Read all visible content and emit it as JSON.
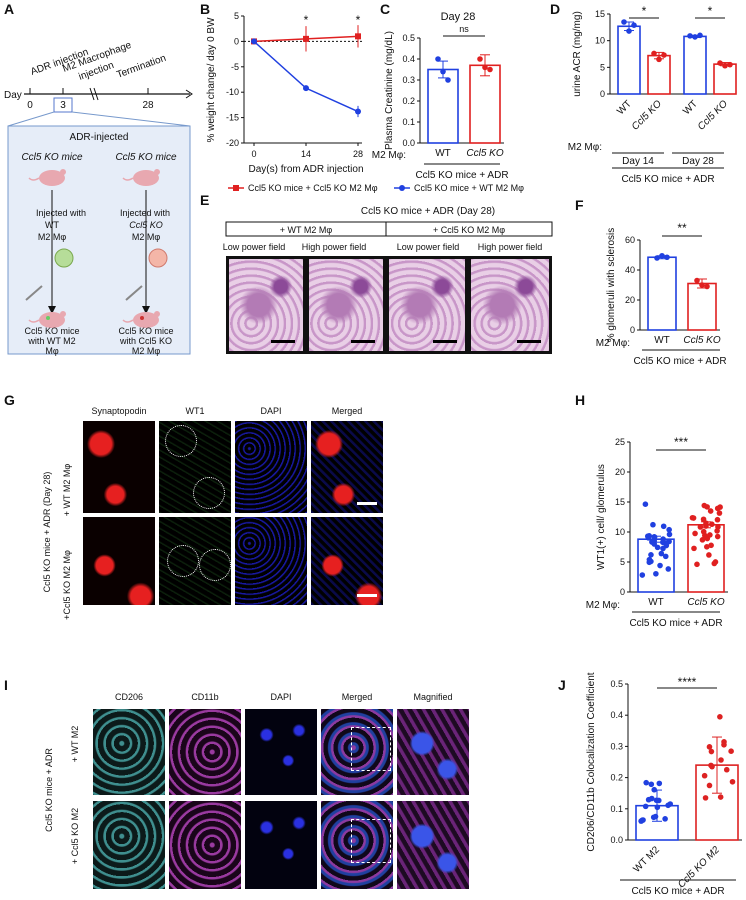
{
  "panels": {
    "A": {
      "letter": "A",
      "day_label": "Day",
      "ticks": [
        "0",
        "3",
        "28"
      ],
      "adr": "ADR injection",
      "m2": "M2 Macrophage\ninjection",
      "term": "Termination",
      "box_title": "ADR-injected",
      "mouse_left": "Ccl5 KO mice",
      "mouse_right": "Ccl5 KO mice",
      "inj_left_1": "Injected with",
      "inj_left_2": "WT",
      "inj_left_3": "M2 Mφ",
      "inj_right_1": "Injected with",
      "inj_right_2": "Ccl5 KO",
      "inj_right_3": "M2 Mφ",
      "res_left": "Ccl5 KO mice\nwith WT M2\nMφ",
      "res_right": "Ccl5 KO mice\nwith Ccl5 KO\nM2 Mφ"
    },
    "B": {
      "letter": "B",
      "star": "*"
    },
    "C": {
      "letter": "C",
      "star": "ns"
    },
    "D": {
      "letter": "D",
      "star": "*"
    },
    "E": {
      "letter": "E",
      "title": "Ccl5 KO mice + ADR (Day 28)",
      "group1": "+ WT M2 Mφ",
      "group2": "+ Ccl5 KO M2 Mφ",
      "low": "Low power field",
      "high": "High power field"
    },
    "F": {
      "letter": "F",
      "star": "**"
    },
    "G": {
      "letter": "G",
      "cols": [
        "Synaptopodin",
        "WT1",
        "DAPI",
        "Merged"
      ],
      "side": "Ccl5 KO mice + ADR (Day 28)",
      "row1": "+ WT M2 Mφ",
      "row2": "+Ccl5 KO M2 Mφ"
    },
    "H": {
      "letter": "H",
      "star": "***"
    },
    "I": {
      "letter": "I",
      "cols": [
        "CD206",
        "CD11b",
        "DAPI",
        "Merged",
        "Magnified"
      ],
      "side": "Ccl5 KO mice + ADR",
      "row1": "+ WT M2",
      "row2": "+ Ccl5 KO M2"
    },
    "J": {
      "letter": "J",
      "star": "****"
    }
  },
  "chart_data": [
    {
      "panel": "B",
      "type": "line",
      "xlabel": "Day(s) from ADR injection",
      "ylabel": "% weight change/ day 0 BW",
      "x": [
        0,
        14,
        28
      ],
      "xlim": [
        0,
        28
      ],
      "ylim": [
        -20,
        5
      ],
      "yticks": [
        5,
        0,
        -5,
        -10,
        -15,
        -20
      ],
      "series": [
        {
          "name": "Ccl5 KO mice + Ccl5 KO M2 Mφ",
          "values": [
            0,
            0.5,
            1
          ],
          "err": [
            0,
            2.5,
            2.2
          ],
          "color": "#e02020"
        },
        {
          "name": "Ccl5 KO mice + WT M2 Mφ",
          "values": [
            0,
            -9.2,
            -13.8
          ],
          "err": [
            0,
            0.3,
            1.1
          ],
          "color": "#2040e0"
        }
      ],
      "annotations": [
        "*",
        "*"
      ]
    },
    {
      "panel": "C",
      "type": "bar",
      "title": "Day 28",
      "ylabel": "Plasma Creatinine (mg/dL)",
      "categories": [
        "WT",
        "Ccl5 KO"
      ],
      "values": [
        0.35,
        0.37
      ],
      "err": [
        0.04,
        0.05
      ],
      "ylim": [
        0,
        0.5
      ],
      "yticks": [
        0,
        0.1,
        0.2,
        0.3,
        0.4,
        0.5
      ],
      "points": [
        [
          0.4,
          0.34,
          0.3
        ],
        [
          0.4,
          0.36,
          0.35
        ]
      ],
      "xprefix": "M2 Mφ:",
      "group": "Ccl5 KO mice + ADR",
      "annotation": "ns"
    },
    {
      "panel": "D",
      "type": "bar",
      "ylabel": "urine ACR (mg/mg)",
      "categories": [
        "WT",
        "Ccl5 KO",
        "WT",
        "Ccl5 KO"
      ],
      "values": [
        12.7,
        7.2,
        10.8,
        5.6
      ],
      "err": [
        0.8,
        0.6,
        0.2,
        0.3
      ],
      "ylim": [
        0,
        15
      ],
      "yticks": [
        0,
        5,
        10,
        15
      ],
      "points": [
        [
          13.5,
          11.8,
          12.9
        ],
        [
          7.6,
          6.5,
          7.3
        ],
        [
          10.9,
          10.7,
          11.0
        ],
        [
          5.8,
          5.3,
          5.5
        ]
      ],
      "subgroups": [
        "Day 14",
        "Day 28"
      ],
      "xprefix": "M2 Mφ:",
      "group": "Ccl5 KO mice + ADR",
      "annotations": [
        "*",
        "*"
      ]
    },
    {
      "panel": "F",
      "type": "bar",
      "ylabel": "% glomeruli with sclerosis",
      "categories": [
        "WT",
        "Ccl5 KO"
      ],
      "values": [
        48.5,
        31
      ],
      "err": [
        1,
        3
      ],
      "ylim": [
        0,
        60
      ],
      "yticks": [
        0,
        20,
        40,
        60
      ],
      "points": [
        [
          48,
          49.5,
          48.5
        ],
        [
          33,
          30,
          29
        ]
      ],
      "xprefix": "M2 Mφ:",
      "group": "Ccl5 KO mice + ADR",
      "annotation": "**"
    },
    {
      "panel": "H",
      "type": "bar",
      "ylabel": "WT1(+) cell/ glomerulus",
      "categories": [
        "WT",
        "Ccl5 KO"
      ],
      "values": [
        8.8,
        11.2
      ],
      "err": [
        0.5,
        0.5
      ],
      "ylim": [
        0,
        25
      ],
      "yticks": [
        0,
        5,
        10,
        15,
        20,
        25
      ],
      "npoints": [
        30,
        30
      ],
      "spread": [
        [
          3,
          14
        ],
        [
          5,
          18
        ]
      ],
      "xprefix": "M2 Mφ:",
      "group": "Ccl5 KO mice + ADR",
      "annotation": "***"
    },
    {
      "panel": "J",
      "type": "bar",
      "ylabel": "CD206/CD11b Colocalization Coefficient",
      "categories": [
        "WT M2",
        "Ccl5 KO M2"
      ],
      "values": [
        0.11,
        0.24
      ],
      "err": [
        0.05,
        0.09
      ],
      "ylim": [
        0,
        0.5
      ],
      "yticks": [
        0,
        0.1,
        0.2,
        0.3,
        0.4,
        0.5
      ],
      "npoints": [
        18,
        15
      ],
      "spread": [
        [
          0.03,
          0.2
        ],
        [
          0.1,
          0.4
        ]
      ],
      "group": "Ccl5 KO mice + ADR",
      "annotation": "****"
    }
  ]
}
